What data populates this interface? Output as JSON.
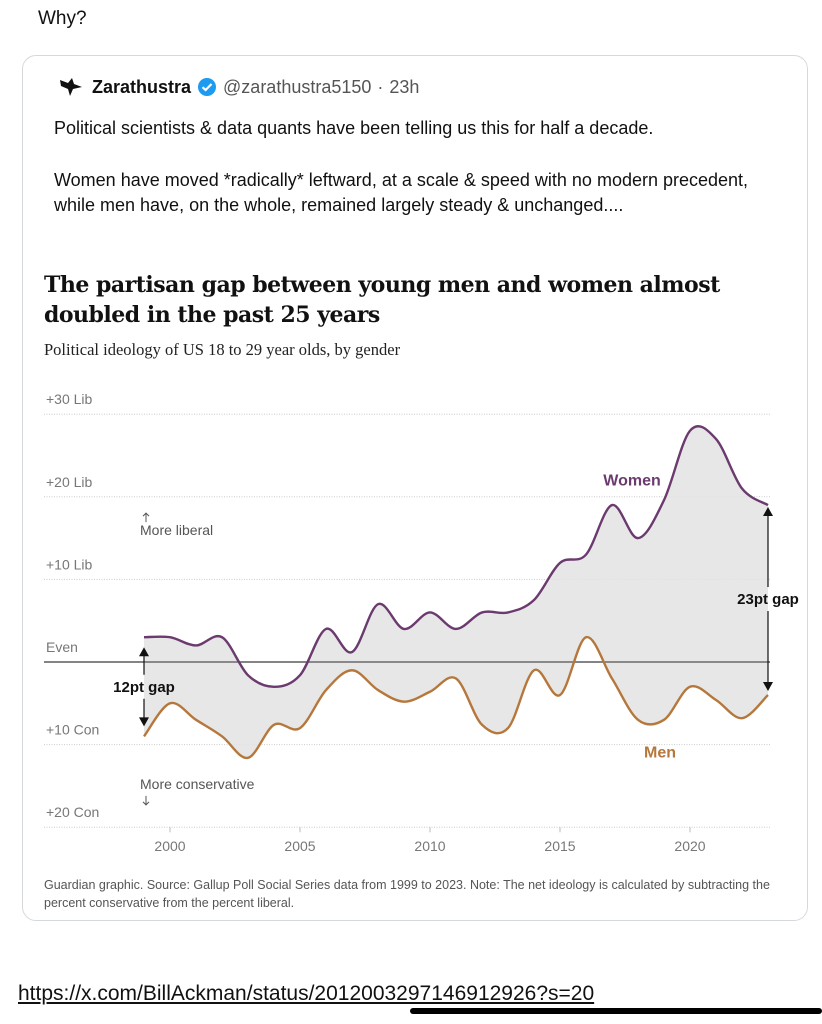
{
  "post_caption": "Why?",
  "tweet": {
    "author_name": "Zarathustra",
    "handle": "@zarathustra5150",
    "time": "23h",
    "verified": true,
    "paragraphs": [
      "Political scientists & data quants have been telling us this for half a decade.",
      "Women have moved *radically* leftward, at a scale & speed with no modern precedent, while men have, on the whole, remained largely steady & unchanged...."
    ]
  },
  "chart_data": {
    "type": "line",
    "title": "The partisan gap between young men and women almost doubled in the past 25 years",
    "subtitle": "Political ideology of US 18 to 29 year olds, by gender",
    "xlabel": "",
    "ylabel": "",
    "x": [
      1999,
      2000,
      2001,
      2002,
      2003,
      2004,
      2005,
      2006,
      2007,
      2008,
      2009,
      2010,
      2011,
      2012,
      2013,
      2014,
      2015,
      2016,
      2017,
      2018,
      2019,
      2020,
      2021,
      2022,
      2023
    ],
    "series": [
      {
        "name": "Women",
        "color": "#6b3a6e",
        "values": [
          3,
          3,
          2,
          3,
          -1.6,
          -3,
          -1.6,
          4,
          1.2,
          7,
          4,
          6,
          4,
          6,
          6,
          7.5,
          12,
          13,
          19,
          15,
          19.6,
          28,
          27,
          21,
          19
        ]
      },
      {
        "name": "Men",
        "color": "#b5773b",
        "values": [
          -9,
          -5,
          -7,
          -9,
          -11.6,
          -7.6,
          -8,
          -3.4,
          -1,
          -3.4,
          -4.8,
          -3.6,
          -2,
          -7.6,
          -8,
          -1,
          -4,
          3,
          -2,
          -7,
          -7,
          -3,
          -4.6,
          -6.8,
          -4
        ]
      }
    ],
    "ylim": [
      -20,
      30
    ],
    "xlim": [
      1998,
      2024
    ],
    "yticks": [
      {
        "v": 30,
        "label": "+30 Lib"
      },
      {
        "v": 20,
        "label": "+20 Lib"
      },
      {
        "v": 10,
        "label": "+10 Lib"
      },
      {
        "v": 0,
        "label": "Even"
      },
      {
        "v": -10,
        "label": "+10 Con"
      },
      {
        "v": -20,
        "label": "+20 Con"
      }
    ],
    "xticks": [
      {
        "v": 2000,
        "label": "2000"
      },
      {
        "v": 2005,
        "label": "2005"
      },
      {
        "v": 2010,
        "label": "2010"
      },
      {
        "v": 2015,
        "label": "2015"
      },
      {
        "v": 2020,
        "label": "2020"
      }
    ],
    "annotations": {
      "more_liberal": "More liberal",
      "more_conservative": "More conservative",
      "gap_start": "12pt gap",
      "gap_end": "23pt gap"
    },
    "grid": true,
    "fill_between_color": "#e3e3e3",
    "source": "Guardian graphic. Source: Gallup Poll Social Series data from 1999 to 2023. Note: The net ideology is calculated by subtracting the percent conservative from the percent liberal."
  },
  "link_url": "https://x.com/BillAckman/status/2012003297146912926?s=20"
}
